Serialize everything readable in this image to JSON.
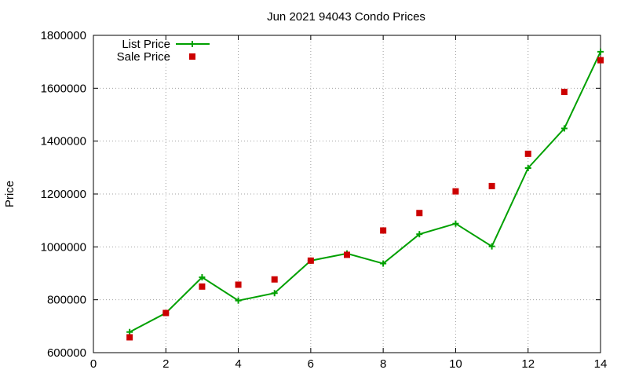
{
  "chart_data": {
    "type": "line",
    "title": "Jun 2021 94043 Condo Prices",
    "xlabel": "",
    "ylabel": "Price",
    "xlim": [
      0,
      14
    ],
    "ylim": [
      600000,
      1800000
    ],
    "x_ticks": [
      0,
      2,
      4,
      6,
      8,
      10,
      12,
      14
    ],
    "y_ticks": [
      600000,
      800000,
      1000000,
      1200000,
      1400000,
      1600000,
      1800000
    ],
    "grid": true,
    "legend_position": "top-left",
    "series": [
      {
        "name": "List Price",
        "type": "line",
        "marker": "plus",
        "color": "#00a000",
        "x": [
          1,
          2,
          3,
          4,
          5,
          6,
          7,
          8,
          9,
          10,
          11,
          12,
          13,
          14
        ],
        "values": [
          678000,
          750000,
          885000,
          797000,
          825000,
          948000,
          975000,
          937000,
          1048000,
          1088000,
          1002000,
          1298000,
          1448000,
          1738000
        ]
      },
      {
        "name": "Sale Price",
        "type": "scatter",
        "marker": "square",
        "color": "#cc0000",
        "x": [
          1,
          2,
          3,
          4,
          5,
          6,
          7,
          8,
          9,
          10,
          11,
          12,
          13,
          14
        ],
        "values": [
          658000,
          750000,
          850000,
          857000,
          877000,
          948000,
          970000,
          1062000,
          1128000,
          1210000,
          1230000,
          1352000,
          1586000,
          1706000
        ]
      }
    ]
  }
}
